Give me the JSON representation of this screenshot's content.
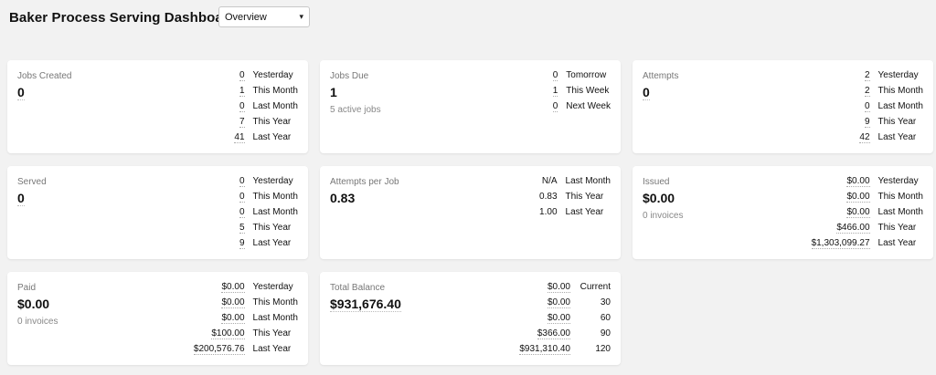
{
  "header": {
    "title": "Baker Process Serving Dashboard",
    "view_select": "Overview"
  },
  "cards": {
    "jobs_created": {
      "label": "Jobs Created",
      "value": "0",
      "stats": [
        {
          "v": "0",
          "k": "Yesterday"
        },
        {
          "v": "1",
          "k": "This Month"
        },
        {
          "v": "0",
          "k": "Last Month"
        },
        {
          "v": "7",
          "k": "This Year"
        },
        {
          "v": "41",
          "k": "Last Year"
        }
      ]
    },
    "jobs_due": {
      "label": "Jobs Due",
      "value": "1",
      "sub": "5 active jobs",
      "stats": [
        {
          "v": "0",
          "k": "Tomorrow"
        },
        {
          "v": "1",
          "k": "This Week"
        },
        {
          "v": "0",
          "k": "Next Week"
        }
      ]
    },
    "attempts": {
      "label": "Attempts",
      "value": "0",
      "stats": [
        {
          "v": "2",
          "k": "Yesterday"
        },
        {
          "v": "2",
          "k": "This Month"
        },
        {
          "v": "0",
          "k": "Last Month"
        },
        {
          "v": "9",
          "k": "This Year"
        },
        {
          "v": "42",
          "k": "Last Year"
        }
      ]
    },
    "served": {
      "label": "Served",
      "value": "0",
      "stats": [
        {
          "v": "0",
          "k": "Yesterday"
        },
        {
          "v": "0",
          "k": "This Month"
        },
        {
          "v": "0",
          "k": "Last Month"
        },
        {
          "v": "5",
          "k": "This Year"
        },
        {
          "v": "9",
          "k": "Last Year"
        }
      ]
    },
    "attempts_per_job": {
      "label": "Attempts per Job",
      "value": "0.83",
      "stats": [
        {
          "v": "N/A",
          "k": "Last Month"
        },
        {
          "v": "0.83",
          "k": "This Year"
        },
        {
          "v": "1.00",
          "k": "Last Year"
        }
      ]
    },
    "issued": {
      "label": "Issued",
      "value": "$0.00",
      "sub": "0 invoices",
      "stats": [
        {
          "v": "$0.00",
          "k": "Yesterday"
        },
        {
          "v": "$0.00",
          "k": "This Month"
        },
        {
          "v": "$0.00",
          "k": "Last Month"
        },
        {
          "v": "$466.00",
          "k": "This Year"
        },
        {
          "v": "$1,303,099.27",
          "k": "Last Year"
        }
      ]
    },
    "paid": {
      "label": "Paid",
      "value": "$0.00",
      "sub": "0 invoices",
      "stats": [
        {
          "v": "$0.00",
          "k": "Yesterday"
        },
        {
          "v": "$0.00",
          "k": "This Month"
        },
        {
          "v": "$0.00",
          "k": "Last Month"
        },
        {
          "v": "$100.00",
          "k": "This Year"
        },
        {
          "v": "$200,576.76",
          "k": "Last Year"
        }
      ]
    },
    "total_balance": {
      "label": "Total Balance",
      "value": "$931,676.40",
      "stats": [
        {
          "v": "$0.00",
          "k": "Current"
        },
        {
          "v": "$0.00",
          "k": "30"
        },
        {
          "v": "$0.00",
          "k": "60"
        },
        {
          "v": "$366.00",
          "k": "90"
        },
        {
          "v": "$931,310.40",
          "k": "120"
        }
      ]
    }
  }
}
